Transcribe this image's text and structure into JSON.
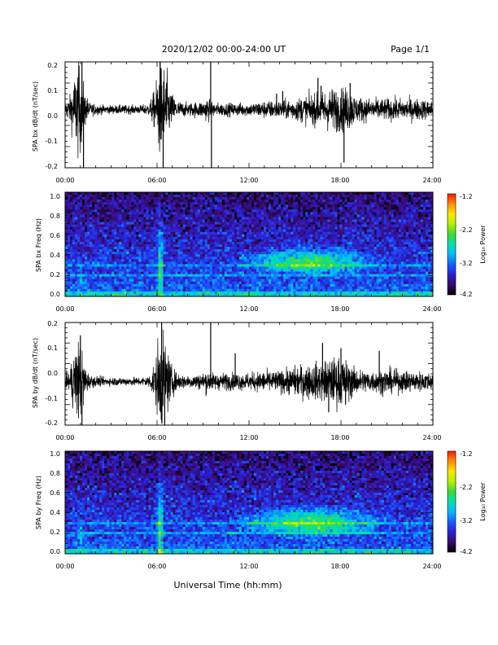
{
  "header": {
    "title": "2020/12/02  00:00-24:00 UT",
    "page": "Page 1/1"
  },
  "xaxis": {
    "label": "Universal Time (hh:mm)",
    "range": [
      0,
      24
    ],
    "tick_labels": [
      "00:00",
      "06:00",
      "12:00",
      "18:00",
      "24:00"
    ]
  },
  "colorbar": {
    "label": "Log₁₀ Power",
    "range": [
      -4.2,
      -1.2
    ],
    "tick_labels": [
      "-1.2",
      "-2.2",
      "-3.2",
      "-4.2"
    ],
    "colormap": [
      "#000000",
      "#3a0a6e",
      "#2b1fd6",
      "#1560ff",
      "#00b8ff",
      "#00e0b0",
      "#3cdc32",
      "#b4f000",
      "#ffe600",
      "#ff8c00",
      "#ff1a00"
    ]
  },
  "chart_data": [
    {
      "type": "line",
      "ylabel": "SPA bx dB/dt (nT/sec)",
      "xlim": [
        0,
        24
      ],
      "ylim": [
        -0.2,
        0.2
      ],
      "ytick_labels": [
        "0.2",
        "0.1",
        "0.0",
        "-0.1",
        "-0.2"
      ],
      "baseline": 0.02,
      "envelope": {
        "hours": [
          0,
          0.3,
          0.6,
          0.8,
          1.0,
          1.3,
          1.6,
          2.5,
          4.0,
          5.0,
          5.5,
          5.9,
          6.1,
          6.3,
          6.6,
          6.9,
          7.3,
          8.0,
          9.0,
          9.3,
          9.5,
          10.0,
          11.0,
          12.0,
          13.0,
          14.0,
          15.0,
          15.5,
          16.0,
          16.5,
          17.0,
          17.5,
          18.0,
          18.5,
          19.0,
          20.0,
          21.0,
          22.0,
          23.0,
          24.0
        ],
        "amplitude": [
          0.03,
          0.06,
          0.15,
          0.22,
          0.2,
          0.08,
          0.03,
          0.02,
          0.02,
          0.02,
          0.03,
          0.1,
          0.22,
          0.22,
          0.18,
          0.08,
          0.04,
          0.03,
          0.04,
          0.06,
          0.04,
          0.03,
          0.03,
          0.03,
          0.04,
          0.04,
          0.05,
          0.06,
          0.07,
          0.07,
          0.09,
          0.1,
          0.1,
          0.1,
          0.06,
          0.05,
          0.05,
          0.05,
          0.05,
          0.04
        ]
      },
      "spikes": [
        [
          9.5,
          0.22
        ],
        [
          9.55,
          -0.22
        ],
        [
          1.1,
          0.2
        ],
        [
          1.2,
          -0.21
        ],
        [
          6.2,
          0.22
        ],
        [
          6.4,
          -0.22
        ],
        [
          13.8,
          0.08
        ],
        [
          14.2,
          0.09
        ],
        [
          16.5,
          0.14
        ],
        [
          16.7,
          0.11
        ],
        [
          18.2,
          -0.18
        ],
        [
          18.6,
          0.12
        ]
      ]
    },
    {
      "type": "heatmap",
      "ylabel": "SPA bx Freq (Hz)",
      "xlim": [
        0,
        24
      ],
      "ylim": [
        0,
        1.0
      ],
      "ytick_labels": [
        "1.0",
        "0.8",
        "0.6",
        "0.4",
        "0.2",
        "0.0"
      ],
      "value": "log10 power",
      "background_log_power": -3.9,
      "enhancements": [
        {
          "hour_center": 16,
          "hour_width": 4.5,
          "freq_center": 0.33,
          "freq_width": 0.14,
          "log_power": -2.5
        },
        {
          "hour_center": 6.2,
          "hour_width": 0.25,
          "freq_center": 0.2,
          "freq_width": 0.5,
          "log_power": -2.6
        },
        {
          "hour_center": 1.0,
          "hour_width": 0.25,
          "freq_center": 0.1,
          "freq_width": 0.3,
          "log_power": -3.0
        }
      ],
      "bands_hz": [
        0.3,
        0.2
      ]
    },
    {
      "type": "line",
      "ylabel": "SPA by dB/dt (nT/sec)",
      "xlim": [
        0,
        24
      ],
      "ylim": [
        -0.2,
        0.2
      ],
      "ytick_labels": [
        "0.2",
        "0.1",
        "0.0",
        "-0.1",
        "-0.2"
      ],
      "baseline": -0.03,
      "envelope": {
        "hours": [
          0,
          0.3,
          0.6,
          0.8,
          1.0,
          1.3,
          1.6,
          2.5,
          4.0,
          5.0,
          5.5,
          5.9,
          6.1,
          6.3,
          6.6,
          6.9,
          7.3,
          8.0,
          9.0,
          9.3,
          9.5,
          10.0,
          11.0,
          12.0,
          13.0,
          14.0,
          15.0,
          15.5,
          16.0,
          16.5,
          17.0,
          17.5,
          18.0,
          18.5,
          19.0,
          20.0,
          21.0,
          22.0,
          23.0,
          24.0
        ],
        "amplitude": [
          0.03,
          0.06,
          0.15,
          0.2,
          0.18,
          0.08,
          0.03,
          0.02,
          0.02,
          0.02,
          0.03,
          0.1,
          0.22,
          0.22,
          0.18,
          0.08,
          0.04,
          0.03,
          0.04,
          0.06,
          0.04,
          0.04,
          0.04,
          0.04,
          0.05,
          0.05,
          0.07,
          0.08,
          0.08,
          0.09,
          0.1,
          0.11,
          0.12,
          0.09,
          0.06,
          0.05,
          0.06,
          0.05,
          0.05,
          0.04
        ]
      },
      "spikes": [
        [
          9.5,
          0.22
        ],
        [
          1.0,
          0.15
        ],
        [
          1.1,
          -0.2
        ],
        [
          6.3,
          0.22
        ],
        [
          6.5,
          -0.22
        ],
        [
          11.1,
          0.08
        ],
        [
          16.8,
          0.12
        ],
        [
          17.2,
          -0.15
        ],
        [
          18.0,
          0.1
        ],
        [
          18.3,
          -0.12
        ],
        [
          20.5,
          0.09
        ]
      ]
    },
    {
      "type": "heatmap",
      "ylabel": "SPA by Freq (Hz)",
      "xlim": [
        0,
        24
      ],
      "ylim": [
        0,
        1.0
      ],
      "ytick_labels": [
        "1.0",
        "0.8",
        "0.6",
        "0.4",
        "0.2",
        "0.0"
      ],
      "value": "log10 power",
      "background_log_power": -3.9,
      "enhancements": [
        {
          "hour_center": 16,
          "hour_width": 5,
          "freq_center": 0.3,
          "freq_width": 0.16,
          "log_power": -2.5
        },
        {
          "hour_center": 6.2,
          "hour_width": 0.25,
          "freq_center": 0.2,
          "freq_width": 0.5,
          "log_power": -2.6
        },
        {
          "hour_center": 1.0,
          "hour_width": 0.25,
          "freq_center": 0.1,
          "freq_width": 0.3,
          "log_power": -3.0
        }
      ],
      "bands_hz": [
        0.3,
        0.2
      ]
    }
  ]
}
